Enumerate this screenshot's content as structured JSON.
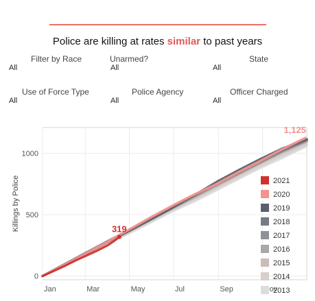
{
  "header": {
    "title_before": "Police are killing at rates ",
    "title_highlight": "similar",
    "title_after": " to past years",
    "accent": "#ec7067"
  },
  "filters": [
    {
      "label": "Filter by Race",
      "value": "All"
    },
    {
      "label": "Unarmed?",
      "value": "All"
    },
    {
      "label": "State",
      "value": "All"
    },
    {
      "label": "Use of Force Type",
      "value": "All"
    },
    {
      "label": "Police Agency",
      "value": "All"
    },
    {
      "label": "Officer Charged",
      "value": "All"
    }
  ],
  "chart_data": {
    "type": "line",
    "ylabel": "Killings by Police",
    "xlabel": "",
    "x_ticks": [
      "Jan",
      "Mar",
      "May",
      "Jul",
      "Sep",
      "Nov"
    ],
    "x_tick_days": [
      0,
      59,
      120,
      181,
      243,
      304
    ],
    "xlim": [
      0,
      365
    ],
    "y_ticks": [
      0,
      500,
      1000
    ],
    "ylim": [
      -30,
      1210
    ],
    "grid": true,
    "legend_position": "right",
    "annotations": [
      {
        "series": "2021",
        "text": "319",
        "x_day": 106,
        "y": 319,
        "color": "#d0312d"
      },
      {
        "series": "2020",
        "text": "1,125",
        "x_day": 363,
        "y": 1125,
        "color": "#f4928d"
      }
    ],
    "series": [
      {
        "name": "2013",
        "color": "#dcdcdc",
        "x": [
          0,
          30,
          60,
          90,
          120,
          150,
          180,
          210,
          240,
          270,
          300,
          330,
          365
        ],
        "y": [
          0,
          85,
          175,
          265,
          350,
          440,
          530,
          610,
          700,
          790,
          880,
          960,
          1060
        ]
      },
      {
        "name": "2014",
        "color": "#d8cfcb",
        "x": [
          0,
          30,
          60,
          90,
          120,
          150,
          180,
          210,
          240,
          270,
          300,
          330,
          365
        ],
        "y": [
          0,
          90,
          180,
          270,
          360,
          450,
          540,
          625,
          715,
          805,
          895,
          980,
          1070
        ]
      },
      {
        "name": "2015",
        "color": "#c9bdb8",
        "x": [
          0,
          30,
          60,
          90,
          120,
          150,
          180,
          210,
          240,
          270,
          300,
          330,
          365
        ],
        "y": [
          0,
          92,
          185,
          280,
          372,
          462,
          555,
          640,
          730,
          825,
          915,
          1000,
          1090
        ]
      },
      {
        "name": "2016",
        "color": "#a8a8a8",
        "x": [
          0,
          30,
          60,
          90,
          120,
          150,
          180,
          210,
          240,
          270,
          300,
          330,
          365
        ],
        "y": [
          0,
          88,
          180,
          275,
          368,
          460,
          553,
          645,
          740,
          830,
          920,
          1010,
          1100
        ]
      },
      {
        "name": "2017",
        "color": "#8e9198",
        "x": [
          0,
          30,
          60,
          90,
          120,
          150,
          180,
          210,
          240,
          270,
          300,
          330,
          365
        ],
        "y": [
          0,
          95,
          190,
          285,
          375,
          468,
          560,
          655,
          745,
          835,
          925,
          1015,
          1105
        ]
      },
      {
        "name": "2018",
        "color": "#747a86",
        "x": [
          0,
          30,
          60,
          90,
          120,
          150,
          180,
          210,
          240,
          270,
          300,
          330,
          365
        ],
        "y": [
          0,
          92,
          188,
          280,
          372,
          465,
          565,
          660,
          755,
          845,
          935,
          1020,
          1110
        ]
      },
      {
        "name": "2019",
        "color": "#5a5f6a",
        "x": [
          0,
          30,
          60,
          90,
          120,
          150,
          180,
          210,
          240,
          270,
          300,
          330,
          365
        ],
        "y": [
          0,
          90,
          185,
          280,
          370,
          465,
          560,
          660,
          765,
          860,
          950,
          1035,
          1115
        ]
      },
      {
        "name": "2020",
        "color": "#f4928d",
        "x": [
          0,
          30,
          60,
          90,
          120,
          150,
          180,
          210,
          240,
          270,
          300,
          330,
          363
        ],
        "y": [
          0,
          90,
          185,
          280,
          380,
          480,
          575,
          665,
          750,
          845,
          935,
          1030,
          1125
        ]
      },
      {
        "name": "2021",
        "color": "#d0312d",
        "x": [
          0,
          15,
          30,
          45,
          60,
          75,
          90,
          100,
          106
        ],
        "y": [
          0,
          40,
          80,
          125,
          165,
          205,
          250,
          290,
          319
        ]
      }
    ]
  }
}
